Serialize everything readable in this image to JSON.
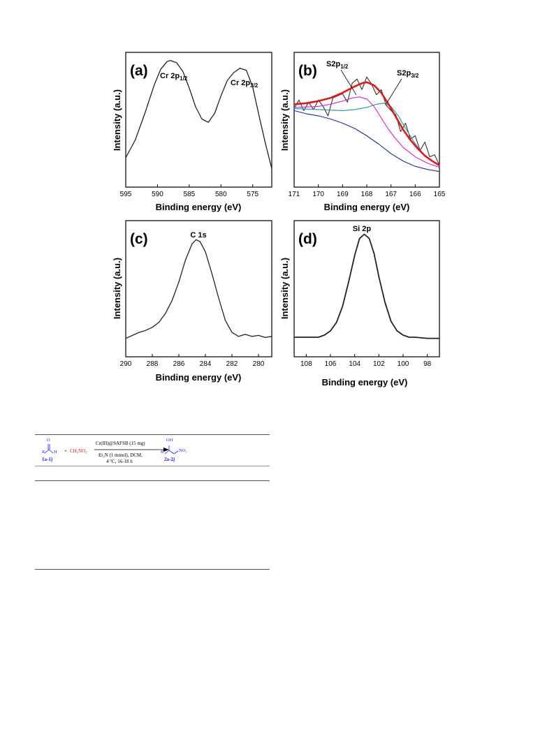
{
  "colors": {
    "red_fit": "#e01a1a",
    "magenta": "#e020d0",
    "teal": "#1a9a90",
    "blue": "#1a2ab0",
    "raw": "#333333",
    "scheme_blue": "#1a1aff",
    "scheme_red": "#e01010"
  },
  "chart_data": [
    {
      "type": "line",
      "panel": "(a)",
      "ylabel": "Intensity (a.u.)",
      "xlabel": "Binding energy (eV)",
      "xlim": [
        595,
        572
      ],
      "ticks": [
        595,
        590,
        585,
        580,
        575
      ],
      "tick_labels": [
        "595",
        "590",
        "585",
        "580",
        "575"
      ],
      "peak_labels": [
        {
          "text": "Cr 2p",
          "sub": "1/2",
          "x": 588
        },
        {
          "text": "Cr 2p",
          "sub": "3/2",
          "x": 577
        }
      ],
      "series": [
        {
          "x": [
            595,
            593.5,
            592,
            590.5,
            589.5,
            588.5,
            588,
            587,
            586,
            585,
            584,
            583,
            582,
            581,
            580,
            579,
            578,
            577,
            576,
            575,
            574,
            573,
            572
          ],
          "y": [
            0.12,
            0.28,
            0.52,
            0.78,
            0.92,
            0.99,
            1.0,
            0.98,
            0.9,
            0.75,
            0.58,
            0.47,
            0.44,
            0.52,
            0.68,
            0.82,
            0.89,
            0.93,
            0.91,
            0.76,
            0.5,
            0.25,
            0.02
          ]
        }
      ]
    },
    {
      "type": "line",
      "panel": "(b)",
      "ylabel": "Intensity (a.u.)",
      "xlabel": "Binding energy (eV)",
      "xlim": [
        171,
        165
      ],
      "ticks": [
        171,
        170,
        169,
        168,
        167,
        166,
        165
      ],
      "tick_labels": [
        "171",
        "170",
        "169",
        "168",
        "167",
        "166",
        "165"
      ],
      "peak_labels": [
        {
          "text": "S2p",
          "sub": "1/2"
        },
        {
          "text": "S2p",
          "sub": "3/2"
        }
      ],
      "series": [
        {
          "name": "raw",
          "x": [
            171,
            170.8,
            170.6,
            170.4,
            170.2,
            170.0,
            169.8,
            169.6,
            169.4,
            169.2,
            169.0,
            168.8,
            168.6,
            168.4,
            168.2,
            168.0,
            167.8,
            167.6,
            167.4,
            167.2,
            167.0,
            166.8,
            166.6,
            166.4,
            166.2,
            166.0,
            165.8,
            165.6,
            165.4,
            165.2,
            165.0
          ],
          "y": [
            0.62,
            0.7,
            0.6,
            0.68,
            0.61,
            0.7,
            0.64,
            0.55,
            0.72,
            0.74,
            0.76,
            0.68,
            0.86,
            0.9,
            0.8,
            0.92,
            0.85,
            0.75,
            0.8,
            0.65,
            0.6,
            0.56,
            0.4,
            0.48,
            0.33,
            0.36,
            0.22,
            0.3,
            0.16,
            0.18,
            0.08
          ]
        },
        {
          "name": "fit",
          "x": [
            171,
            170.5,
            170,
            169.5,
            169,
            168.5,
            168.2,
            168,
            167.7,
            167.4,
            167.1,
            166.8,
            166.5,
            166.2,
            165.9,
            165.6,
            165.3,
            165.0
          ],
          "y": [
            0.66,
            0.67,
            0.69,
            0.72,
            0.77,
            0.83,
            0.86,
            0.87,
            0.84,
            0.77,
            0.66,
            0.54,
            0.42,
            0.32,
            0.24,
            0.17,
            0.12,
            0.08
          ]
        },
        {
          "name": "S2p1/2",
          "x": [
            171,
            170,
            169.5,
            169,
            168.6,
            168.3,
            168.0,
            167.7,
            167.4,
            167.1,
            166.8,
            166.5,
            166.0,
            165.5,
            165.0
          ],
          "y": [
            0.63,
            0.64,
            0.66,
            0.69,
            0.72,
            0.73,
            0.71,
            0.64,
            0.53,
            0.42,
            0.33,
            0.25,
            0.16,
            0.1,
            0.06
          ]
        },
        {
          "name": "S2p3/2",
          "x": [
            171,
            170,
            169,
            168.5,
            168,
            167.6,
            167.3,
            167.0,
            166.7,
            166.4,
            166.1,
            165.8,
            165.5,
            165.2,
            165.0
          ],
          "y": [
            0.62,
            0.61,
            0.6,
            0.61,
            0.63,
            0.66,
            0.67,
            0.64,
            0.55,
            0.43,
            0.32,
            0.22,
            0.15,
            0.1,
            0.07
          ]
        },
        {
          "name": "baseline",
          "x": [
            171,
            170.5,
            170,
            169.5,
            169,
            168.5,
            168,
            167.5,
            167,
            166.5,
            166,
            165.5,
            165.0
          ],
          "y": [
            0.6,
            0.57,
            0.55,
            0.52,
            0.48,
            0.43,
            0.36,
            0.28,
            0.19,
            0.12,
            0.07,
            0.04,
            0.02
          ]
        }
      ]
    },
    {
      "type": "line",
      "panel": "(c)",
      "ylabel": "Intensity (a.u.)",
      "xlabel": "Binding energy (eV)",
      "xlim": [
        290,
        279
      ],
      "ticks": [
        290,
        288,
        286,
        284,
        282,
        280
      ],
      "tick_labels": [
        "290",
        "288",
        "286",
        "284",
        "282",
        "280"
      ],
      "peak_labels": [
        {
          "text": "C 1s",
          "sub": ""
        }
      ],
      "series": [
        {
          "x": [
            290,
            289.5,
            289,
            288.5,
            288,
            287.5,
            287,
            286.5,
            286,
            285.5,
            285,
            284.7,
            284.4,
            284,
            283.5,
            283,
            282.5,
            282,
            281.5,
            281,
            280.5,
            280,
            279.5,
            279
          ],
          "y": [
            0.02,
            0.05,
            0.08,
            0.1,
            0.13,
            0.18,
            0.27,
            0.4,
            0.58,
            0.8,
            0.96,
            1.0,
            0.98,
            0.88,
            0.66,
            0.42,
            0.2,
            0.08,
            0.04,
            0.06,
            0.04,
            0.05,
            0.03,
            0.04
          ]
        }
      ]
    },
    {
      "type": "line",
      "panel": "(d)",
      "ylabel": "Intensity (a.u.)",
      "xlabel": "Binding energy (eV)",
      "xlim": [
        109,
        97
      ],
      "ticks": [
        108,
        106,
        104,
        102,
        100,
        98
      ],
      "tick_labels": [
        "108",
        "106",
        "104",
        "102",
        "100",
        "98"
      ],
      "peak_labels": [
        {
          "text": "Si 2p",
          "sub": ""
        }
      ],
      "series": [
        {
          "x": [
            109,
            108,
            107,
            106.5,
            106,
            105.5,
            105,
            104.5,
            104,
            103.6,
            103.2,
            102.8,
            102.4,
            102,
            101.5,
            101,
            100.5,
            100,
            99.5,
            99,
            98,
            97
          ],
          "y": [
            0.03,
            0.03,
            0.03,
            0.05,
            0.09,
            0.17,
            0.32,
            0.55,
            0.8,
            0.96,
            1.0,
            0.96,
            0.82,
            0.6,
            0.36,
            0.18,
            0.09,
            0.05,
            0.03,
            0.03,
            0.02,
            0.02
          ]
        }
      ]
    }
  ],
  "scheme": {
    "reactant_label": "1a-1j",
    "reactant_atoms": {
      "o": "O",
      "r": "R",
      "h": "H"
    },
    "plus": "+",
    "reagent": "CH₃NO₂",
    "condition_top": "Cr(III)@SAFSB (15 mg)",
    "condition_mid": "Et₃N (1 mmol), DCM,",
    "condition_bot": "4 °C, 16-18 h",
    "product_atoms": {
      "oh": "OH",
      "r": "R",
      "no2": "NO₂"
    },
    "product_label": "2a-2j"
  }
}
